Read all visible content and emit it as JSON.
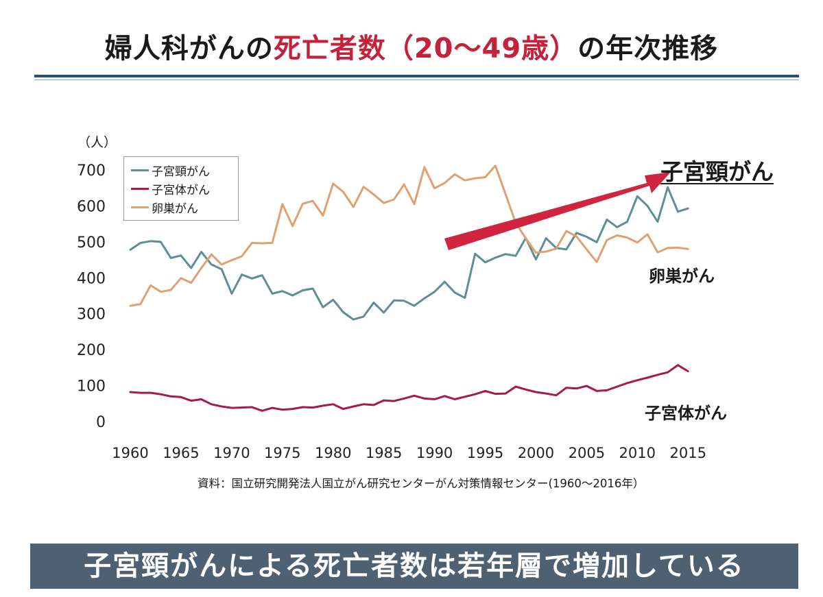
{
  "title": {
    "part1": "婦人科がんの",
    "highlight": "死亡者数（20～49歳）",
    "part2": "の年次推移"
  },
  "colors": {
    "title_highlight": "#c4213b",
    "rule": "#27507d",
    "arrow": "#d0243f",
    "banner_bg": "#4d6172"
  },
  "chart_data": {
    "type": "line",
    "unit_label": "（人）",
    "x": [
      1960,
      1961,
      1962,
      1963,
      1964,
      1965,
      1966,
      1967,
      1968,
      1969,
      1970,
      1971,
      1972,
      1973,
      1974,
      1975,
      1976,
      1977,
      1978,
      1979,
      1980,
      1981,
      1982,
      1983,
      1984,
      1985,
      1986,
      1987,
      1988,
      1989,
      1990,
      1991,
      1992,
      1993,
      1994,
      1995,
      1996,
      1997,
      1998,
      1999,
      2000,
      2001,
      2002,
      2003,
      2004,
      2005,
      2006,
      2007,
      2008,
      2009,
      2010,
      2011,
      2012,
      2013,
      2014,
      2015
    ],
    "xticks": [
      1960,
      1965,
      1970,
      1975,
      1980,
      1985,
      1990,
      1995,
      2000,
      2005,
      2010,
      2015
    ],
    "xlim": [
      1960,
      2016
    ],
    "ylim": [
      0,
      700
    ],
    "yticks": [
      0,
      100,
      200,
      300,
      400,
      500,
      600,
      700
    ],
    "series": [
      {
        "name": "子宮頸がん",
        "color": "#5b8e97",
        "values": [
          478,
          497,
          502,
          500,
          455,
          462,
          427,
          472,
          437,
          424,
          356,
          409,
          398,
          407,
          356,
          363,
          351,
          365,
          370,
          318,
          339,
          304,
          284,
          292,
          331,
          303,
          337,
          336,
          322,
          343,
          361,
          389,
          359,
          344,
          467,
          443,
          456,
          466,
          461,
          511,
          451,
          510,
          483,
          479,
          525,
          514,
          499,
          562,
          541,
          556,
          627,
          600,
          556,
          652,
          584,
          593
        ]
      },
      {
        "name": "子宮体がん",
        "color": "#a81a45",
        "values": [
          82,
          80,
          80,
          76,
          70,
          68,
          58,
          62,
          48,
          42,
          38,
          39,
          40,
          30,
          38,
          33,
          35,
          40,
          39,
          44,
          48,
          35,
          42,
          48,
          46,
          59,
          57,
          64,
          72,
          64,
          62,
          71,
          62,
          69,
          76,
          85,
          77,
          78,
          97,
          89,
          82,
          78,
          73,
          94,
          92,
          99,
          85,
          87,
          97,
          107,
          115,
          122,
          130,
          137,
          157,
          140
        ]
      },
      {
        "name": "卵巣がん",
        "color": "#e0a06f",
        "values": [
          322,
          327,
          379,
          361,
          366,
          399,
          386,
          427,
          465,
          437,
          449,
          460,
          497,
          496,
          497,
          605,
          544,
          606,
          614,
          573,
          662,
          639,
          597,
          653,
          632,
          608,
          618,
          660,
          605,
          708,
          649,
          664,
          688,
          671,
          677,
          680,
          712,
          633,
          553,
          510,
          470,
          473,
          481,
          530,
          515,
          479,
          444,
          505,
          518,
          512,
          498,
          521,
          471,
          483,
          484,
          480
        ]
      }
    ]
  },
  "annotations": {
    "cervical": "子宮頸がん",
    "ovarian": "卵巣がん",
    "endometrial": "子宮体がん"
  },
  "source": "資料：国立研究開発法人国立がん研究センターがん対策情報センター(1960～2016年）",
  "banner": "子宮頸がんによる死亡者数は若年層で増加している"
}
